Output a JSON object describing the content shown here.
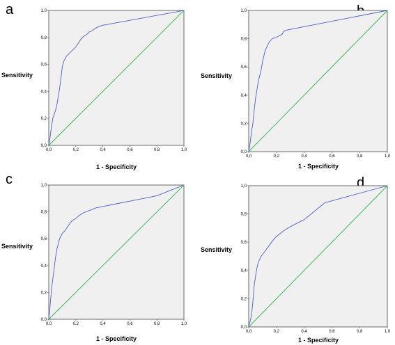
{
  "chart_data": [
    {
      "type": "line",
      "panel_label": "a",
      "xlabel": "1 - Specificity",
      "ylabel": "Sensitivity",
      "xlim": [
        0,
        1
      ],
      "ylim": [
        0,
        1
      ],
      "ticks": [
        "0,0",
        "0,2",
        "0,4",
        "0,6",
        "0,8",
        "1,0"
      ],
      "grid": false,
      "series": [
        {
          "role": "roc",
          "color": "#4a5fc8",
          "x": [
            0,
            0.01,
            0.02,
            0.03,
            0.05,
            0.06,
            0.07,
            0.08,
            0.09,
            0.1,
            0.11,
            0.13,
            0.15,
            0.17,
            0.19,
            0.2,
            0.22,
            0.24,
            0.26,
            0.28,
            0.3,
            0.32,
            0.35,
            0.37,
            0.4,
            1
          ],
          "y": [
            0,
            0.06,
            0.14,
            0.2,
            0.26,
            0.3,
            0.36,
            0.42,
            0.5,
            0.58,
            0.62,
            0.66,
            0.68,
            0.7,
            0.72,
            0.73,
            0.76,
            0.79,
            0.81,
            0.82,
            0.84,
            0.85,
            0.87,
            0.88,
            0.89,
            1
          ]
        },
        {
          "role": "reference",
          "color": "#2fb24a",
          "x": [
            0,
            1
          ],
          "y": [
            0,
            1
          ]
        }
      ]
    },
    {
      "type": "line",
      "panel_label": "b",
      "xlabel": "1 - Specificity",
      "ylabel": "Sensitivity",
      "xlim": [
        0,
        1
      ],
      "ylim": [
        0,
        1
      ],
      "ticks": [
        "0,0",
        "0,2",
        "0,4",
        "0,6",
        "0,8",
        "1,0"
      ],
      "grid": false,
      "series": [
        {
          "role": "roc",
          "color": "#4a5fc8",
          "x": [
            0,
            0.01,
            0.02,
            0.03,
            0.04,
            0.05,
            0.06,
            0.07,
            0.08,
            0.09,
            0.1,
            0.11,
            0.12,
            0.14,
            0.15,
            0.17,
            0.2,
            0.22,
            0.24,
            0.25,
            0.27,
            1
          ],
          "y": [
            0,
            0.06,
            0.14,
            0.2,
            0.3,
            0.38,
            0.44,
            0.5,
            0.54,
            0.58,
            0.64,
            0.68,
            0.72,
            0.76,
            0.78,
            0.8,
            0.81,
            0.82,
            0.83,
            0.85,
            0.86,
            1
          ]
        },
        {
          "role": "reference",
          "color": "#2fb24a",
          "x": [
            0,
            1
          ],
          "y": [
            0,
            1
          ]
        }
      ]
    },
    {
      "type": "line",
      "panel_label": "c",
      "xlabel": "1 - Specificity",
      "ylabel": "Sensitivity",
      "xlim": [
        0,
        1
      ],
      "ylim": [
        0,
        1
      ],
      "ticks": [
        "0,0",
        "0,2",
        "0,4",
        "0,6",
        "0,8",
        "1,0"
      ],
      "grid": false,
      "series": [
        {
          "role": "roc",
          "color": "#4a5fc8",
          "x": [
            0,
            0.01,
            0.02,
            0.03,
            0.04,
            0.05,
            0.06,
            0.07,
            0.08,
            0.09,
            0.1,
            0.12,
            0.14,
            0.16,
            0.18,
            0.2,
            0.22,
            0.25,
            0.3,
            0.35,
            0.4,
            0.5,
            0.6,
            0.7,
            0.8,
            0.9,
            1
          ],
          "y": [
            0,
            0.1,
            0.22,
            0.3,
            0.38,
            0.46,
            0.52,
            0.56,
            0.6,
            0.62,
            0.64,
            0.66,
            0.69,
            0.72,
            0.74,
            0.75,
            0.77,
            0.79,
            0.81,
            0.83,
            0.84,
            0.86,
            0.88,
            0.9,
            0.92,
            0.96,
            1
          ]
        },
        {
          "role": "reference",
          "color": "#2fb24a",
          "x": [
            0,
            1
          ],
          "y": [
            0,
            1
          ]
        }
      ]
    },
    {
      "type": "line",
      "panel_label": "d",
      "xlabel": "1 - Specificity",
      "ylabel": "Sensitivity",
      "xlim": [
        0,
        1
      ],
      "ylim": [
        0,
        1
      ],
      "ticks": [
        "0,0",
        "0,2",
        "0,4",
        "0,6",
        "0,8",
        "1,0"
      ],
      "grid": false,
      "series": [
        {
          "role": "roc",
          "color": "#4a5fc8",
          "x": [
            0,
            0.02,
            0.03,
            0.04,
            0.05,
            0.06,
            0.07,
            0.09,
            0.12,
            0.15,
            0.18,
            0.2,
            0.25,
            0.3,
            0.4,
            0.5,
            0.55,
            1
          ],
          "y": [
            0,
            0.08,
            0.18,
            0.3,
            0.36,
            0.42,
            0.46,
            0.5,
            0.54,
            0.58,
            0.62,
            0.64,
            0.68,
            0.71,
            0.76,
            0.84,
            0.88,
            1
          ]
        },
        {
          "role": "reference",
          "color": "#2fb24a",
          "x": [
            0,
            1
          ],
          "y": [
            0,
            1
          ]
        }
      ]
    }
  ]
}
